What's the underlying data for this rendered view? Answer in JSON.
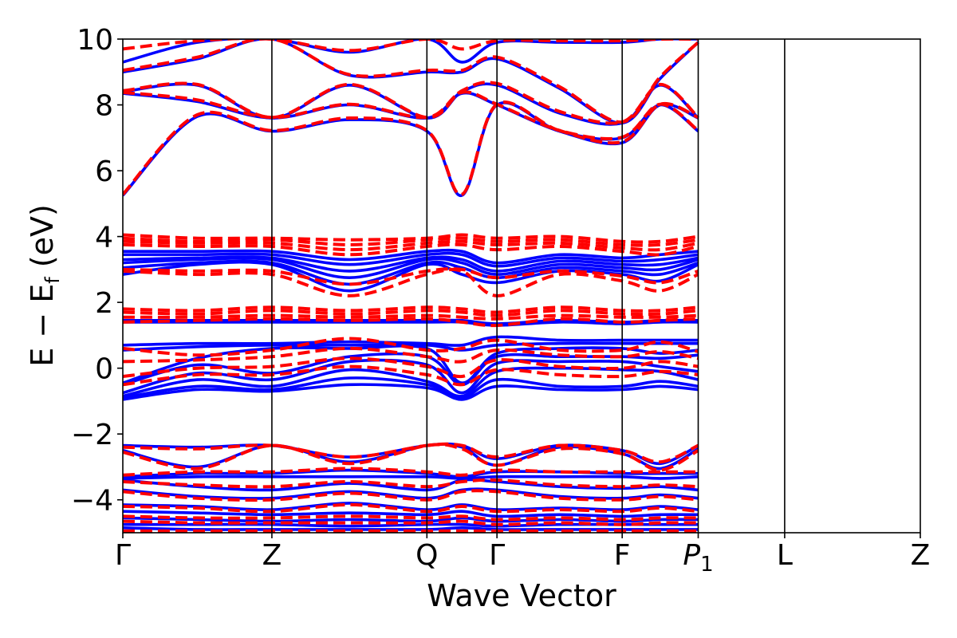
{
  "chart_data": {
    "type": "line",
    "title": "",
    "xlabel": "Wave Vector",
    "ylabel": {
      "main": "E − E",
      "sub": "f",
      "unit": " (eV)"
    },
    "ylim": [
      -5,
      10
    ],
    "yticks": [
      -4,
      -2,
      0,
      2,
      4,
      6,
      8,
      10
    ],
    "ytick_labels": [
      "−4",
      "−2",
      "0",
      "2",
      "4",
      "6",
      "8",
      "10"
    ],
    "high_symmetry_points": [
      {
        "label": "Γ",
        "pos": 0.0
      },
      {
        "label": "Z",
        "pos": 1.0
      },
      {
        "label": "Q",
        "pos": 2.04
      },
      {
        "label": "Γ",
        "pos": 2.51
      },
      {
        "label": "F",
        "pos": 3.35
      },
      {
        "label": "P",
        "sub": "1",
        "italic": true,
        "pos": 3.86
      },
      {
        "label": "L",
        "pos": 4.44
      },
      {
        "label": "Z",
        "pos": 5.35
      }
    ],
    "xlim": [
      0,
      5.35
    ],
    "grid": false,
    "legend": "none",
    "series": [
      {
        "style": "solid",
        "color": "#0000ff",
        "bands": [
          [
            5.25,
            7.65,
            7.2,
            7.55,
            7.2,
            5.25,
            8.0,
            7.2,
            7.0,
            8.0,
            7.2
          ],
          [
            8.35,
            8.1,
            7.6,
            8.0,
            7.6,
            8.35,
            8.0,
            7.2,
            6.85,
            8.0,
            7.6
          ],
          [
            8.4,
            8.6,
            7.6,
            8.6,
            7.6,
            8.4,
            8.6,
            7.75,
            7.45,
            8.6,
            7.6
          ],
          [
            9.0,
            9.4,
            10.0,
            8.9,
            9.0,
            9.0,
            9.4,
            8.5,
            7.45,
            8.8,
            9.9
          ],
          [
            9.3,
            9.9,
            10.0,
            9.6,
            10.0,
            9.3,
            9.9,
            9.9,
            9.9,
            10.0,
            10.0
          ],
          [
            3.55,
            3.55,
            3.55,
            3.3,
            3.55,
            3.55,
            3.2,
            3.45,
            3.35,
            3.45,
            3.55
          ],
          [
            3.45,
            3.45,
            3.45,
            3.15,
            3.45,
            3.45,
            3.1,
            3.35,
            3.25,
            3.3,
            3.45
          ],
          [
            3.3,
            3.35,
            3.35,
            2.95,
            3.35,
            3.3,
            2.95,
            3.25,
            3.15,
            3.15,
            3.35
          ],
          [
            3.2,
            3.3,
            3.3,
            2.75,
            3.3,
            3.2,
            2.85,
            3.15,
            3.05,
            3.0,
            3.3
          ],
          [
            3.05,
            3.2,
            3.2,
            2.55,
            3.2,
            3.05,
            2.75,
            3.05,
            2.95,
            2.85,
            3.2
          ],
          [
            2.85,
            3.15,
            3.15,
            2.35,
            3.15,
            2.85,
            2.6,
            2.95,
            2.85,
            2.65,
            3.15
          ],
          [
            1.45,
            1.45,
            1.45,
            1.45,
            1.45,
            1.45,
            1.35,
            1.45,
            1.4,
            1.45,
            1.45
          ],
          [
            1.4,
            1.4,
            1.4,
            1.4,
            1.4,
            1.4,
            1.3,
            1.4,
            1.35,
            1.4,
            1.4
          ],
          [
            0.7,
            0.75,
            0.75,
            0.8,
            0.75,
            0.7,
            0.95,
            0.85,
            0.85,
            0.85,
            0.85
          ],
          [
            0.55,
            0.65,
            0.7,
            0.7,
            0.7,
            0.55,
            0.7,
            0.75,
            0.75,
            0.75,
            0.75
          ],
          [
            -0.45,
            0.3,
            0.6,
            0.6,
            0.6,
            -0.45,
            0.45,
            0.6,
            0.6,
            0.45,
            0.55
          ],
          [
            -0.5,
            0.1,
            -0.15,
            0.35,
            0.35,
            -0.5,
            0.35,
            0.35,
            0.35,
            0.3,
            0.4
          ],
          [
            -0.75,
            -0.15,
            -0.35,
            0.2,
            0.1,
            -0.75,
            0.15,
            0.2,
            0.2,
            0.05,
            -0.1
          ],
          [
            -0.85,
            -0.35,
            -0.55,
            -0.05,
            -0.4,
            -0.85,
            -0.1,
            0.0,
            -0.05,
            -0.1,
            -0.35
          ],
          [
            -0.9,
            -0.55,
            -0.65,
            -0.3,
            -0.5,
            -0.9,
            -0.35,
            -0.55,
            -0.55,
            -0.4,
            -0.55
          ],
          [
            -0.95,
            -0.65,
            -0.7,
            -0.5,
            -0.6,
            -0.95,
            -0.55,
            -0.65,
            -0.65,
            -0.55,
            -0.65
          ],
          [
            -2.35,
            -2.4,
            -2.35,
            -2.7,
            -2.35,
            -2.35,
            -2.75,
            -2.35,
            -2.5,
            -2.9,
            -2.35
          ],
          [
            -2.5,
            -3.0,
            -2.35,
            -2.85,
            -2.35,
            -2.4,
            -2.95,
            -2.4,
            -2.6,
            -3.05,
            -2.45
          ],
          [
            -3.3,
            -3.2,
            -3.2,
            -3.1,
            -3.2,
            -3.3,
            -3.15,
            -3.15,
            -3.2,
            -3.2,
            -3.2
          ],
          [
            -3.35,
            -3.3,
            -3.3,
            -3.3,
            -3.3,
            -3.35,
            -3.3,
            -3.3,
            -3.3,
            -3.35,
            -3.3
          ],
          [
            -3.4,
            -3.6,
            -3.7,
            -3.5,
            -3.7,
            -3.4,
            -3.45,
            -3.6,
            -3.65,
            -3.6,
            -3.7
          ],
          [
            -3.7,
            -3.9,
            -3.95,
            -3.75,
            -3.95,
            -3.7,
            -3.7,
            -3.9,
            -3.95,
            -3.85,
            -3.95
          ],
          [
            -4.15,
            -4.2,
            -4.3,
            -4.1,
            -4.3,
            -4.15,
            -4.3,
            -4.25,
            -4.3,
            -4.2,
            -4.3
          ],
          [
            -4.35,
            -4.4,
            -4.45,
            -4.4,
            -4.45,
            -4.35,
            -4.5,
            -4.45,
            -4.5,
            -4.45,
            -4.45
          ],
          [
            -4.55,
            -4.6,
            -4.65,
            -4.6,
            -4.65,
            -4.55,
            -4.65,
            -4.6,
            -4.65,
            -4.6,
            -4.6
          ],
          [
            -4.75,
            -4.75,
            -4.75,
            -4.8,
            -4.75,
            -4.75,
            -4.8,
            -4.75,
            -4.75,
            -4.75,
            -4.75
          ],
          [
            -4.85,
            -4.9,
            -4.9,
            -4.9,
            -4.9,
            -4.85,
            -4.9,
            -4.9,
            -4.9,
            -4.9,
            -4.9
          ]
        ]
      },
      {
        "style": "dashed",
        "color": "#ff0000",
        "bands": [
          [
            5.28,
            7.7,
            7.22,
            7.6,
            7.22,
            5.28,
            8.02,
            7.22,
            7.02,
            8.02,
            7.22
          ],
          [
            8.38,
            8.15,
            7.62,
            8.02,
            7.62,
            8.38,
            8.02,
            7.22,
            6.88,
            8.02,
            7.62
          ],
          [
            8.43,
            8.62,
            7.62,
            8.62,
            7.62,
            8.43,
            8.65,
            7.8,
            7.48,
            8.62,
            7.62
          ],
          [
            9.05,
            9.45,
            10.0,
            8.92,
            9.05,
            9.05,
            9.45,
            8.55,
            7.48,
            8.85,
            9.9
          ],
          [
            9.7,
            9.95,
            10.0,
            9.65,
            10.0,
            9.7,
            9.95,
            9.95,
            9.95,
            10.0,
            10.0
          ],
          [
            4.05,
            3.95,
            3.95,
            3.9,
            3.95,
            4.05,
            3.95,
            4.0,
            3.85,
            3.85,
            4.0
          ],
          [
            3.95,
            3.85,
            3.9,
            3.75,
            3.9,
            3.95,
            3.85,
            3.9,
            3.75,
            3.75,
            3.9
          ],
          [
            3.85,
            3.8,
            3.8,
            3.6,
            3.8,
            3.85,
            3.75,
            3.8,
            3.65,
            3.6,
            3.8
          ],
          [
            3.75,
            3.7,
            3.7,
            3.45,
            3.7,
            3.75,
            3.6,
            3.7,
            3.55,
            3.45,
            3.7
          ],
          [
            3.0,
            2.95,
            2.95,
            2.55,
            2.95,
            3.0,
            2.75,
            2.95,
            2.8,
            2.6,
            2.95
          ],
          [
            2.95,
            2.85,
            2.85,
            2.2,
            2.85,
            2.95,
            2.2,
            2.85,
            2.65,
            2.35,
            2.85
          ],
          [
            1.8,
            1.75,
            1.85,
            1.75,
            1.85,
            1.8,
            1.7,
            1.85,
            1.75,
            1.75,
            1.85
          ],
          [
            1.7,
            1.65,
            1.75,
            1.65,
            1.75,
            1.7,
            1.6,
            1.75,
            1.65,
            1.65,
            1.75
          ],
          [
            1.55,
            1.55,
            1.6,
            1.55,
            1.6,
            1.55,
            1.5,
            1.6,
            1.55,
            1.55,
            1.6
          ],
          [
            1.4,
            1.45,
            1.5,
            1.45,
            1.5,
            1.4,
            1.3,
            1.5,
            1.4,
            1.45,
            1.5
          ],
          [
            0.6,
            0.4,
            0.55,
            0.9,
            0.55,
            0.6,
            0.85,
            0.55,
            0.55,
            0.8,
            0.5
          ],
          [
            0.2,
            0.25,
            0.35,
            0.6,
            0.35,
            0.2,
            0.55,
            0.4,
            0.35,
            0.5,
            0.3
          ],
          [
            -0.25,
            0.0,
            0.05,
            0.3,
            0.05,
            -0.25,
            0.25,
            0.05,
            0.0,
            0.2,
            0.05
          ],
          [
            -0.5,
            -0.2,
            -0.2,
            0.05,
            -0.2,
            -0.5,
            -0.05,
            -0.2,
            -0.25,
            -0.1,
            -0.2
          ],
          [
            -2.4,
            -2.45,
            -2.35,
            -2.7,
            -2.35,
            -2.35,
            -2.7,
            -2.35,
            -2.5,
            -2.85,
            -2.35
          ],
          [
            -2.55,
            -3.05,
            -2.35,
            -2.9,
            -2.35,
            -2.45,
            -2.95,
            -2.45,
            -2.6,
            -3.1,
            -2.5
          ],
          [
            -3.25,
            -3.15,
            -3.15,
            -3.05,
            -3.15,
            -3.25,
            -3.1,
            -3.15,
            -3.15,
            -3.15,
            -3.15
          ],
          [
            -3.45,
            -3.55,
            -3.6,
            -3.45,
            -3.6,
            -3.45,
            -3.4,
            -3.55,
            -3.6,
            -3.55,
            -3.6
          ],
          [
            -3.75,
            -3.95,
            -4.0,
            -3.8,
            -4.0,
            -3.75,
            -3.75,
            -3.95,
            -4.0,
            -3.9,
            -4.0
          ],
          [
            -4.2,
            -4.25,
            -4.35,
            -4.15,
            -4.35,
            -4.2,
            -4.35,
            -4.3,
            -4.35,
            -4.25,
            -4.35
          ],
          [
            -4.5,
            -4.55,
            -4.55,
            -4.5,
            -4.55,
            -4.5,
            -4.6,
            -4.55,
            -4.6,
            -4.55,
            -4.55
          ],
          [
            -4.65,
            -4.7,
            -4.7,
            -4.7,
            -4.7,
            -4.65,
            -4.75,
            -4.7,
            -4.75,
            -4.7,
            -4.7
          ],
          [
            -4.95,
            -4.95,
            -4.95,
            -4.95,
            -4.95,
            -4.95,
            -4.95,
            -4.95,
            -4.95,
            -4.95,
            -4.95
          ]
        ]
      }
    ]
  }
}
